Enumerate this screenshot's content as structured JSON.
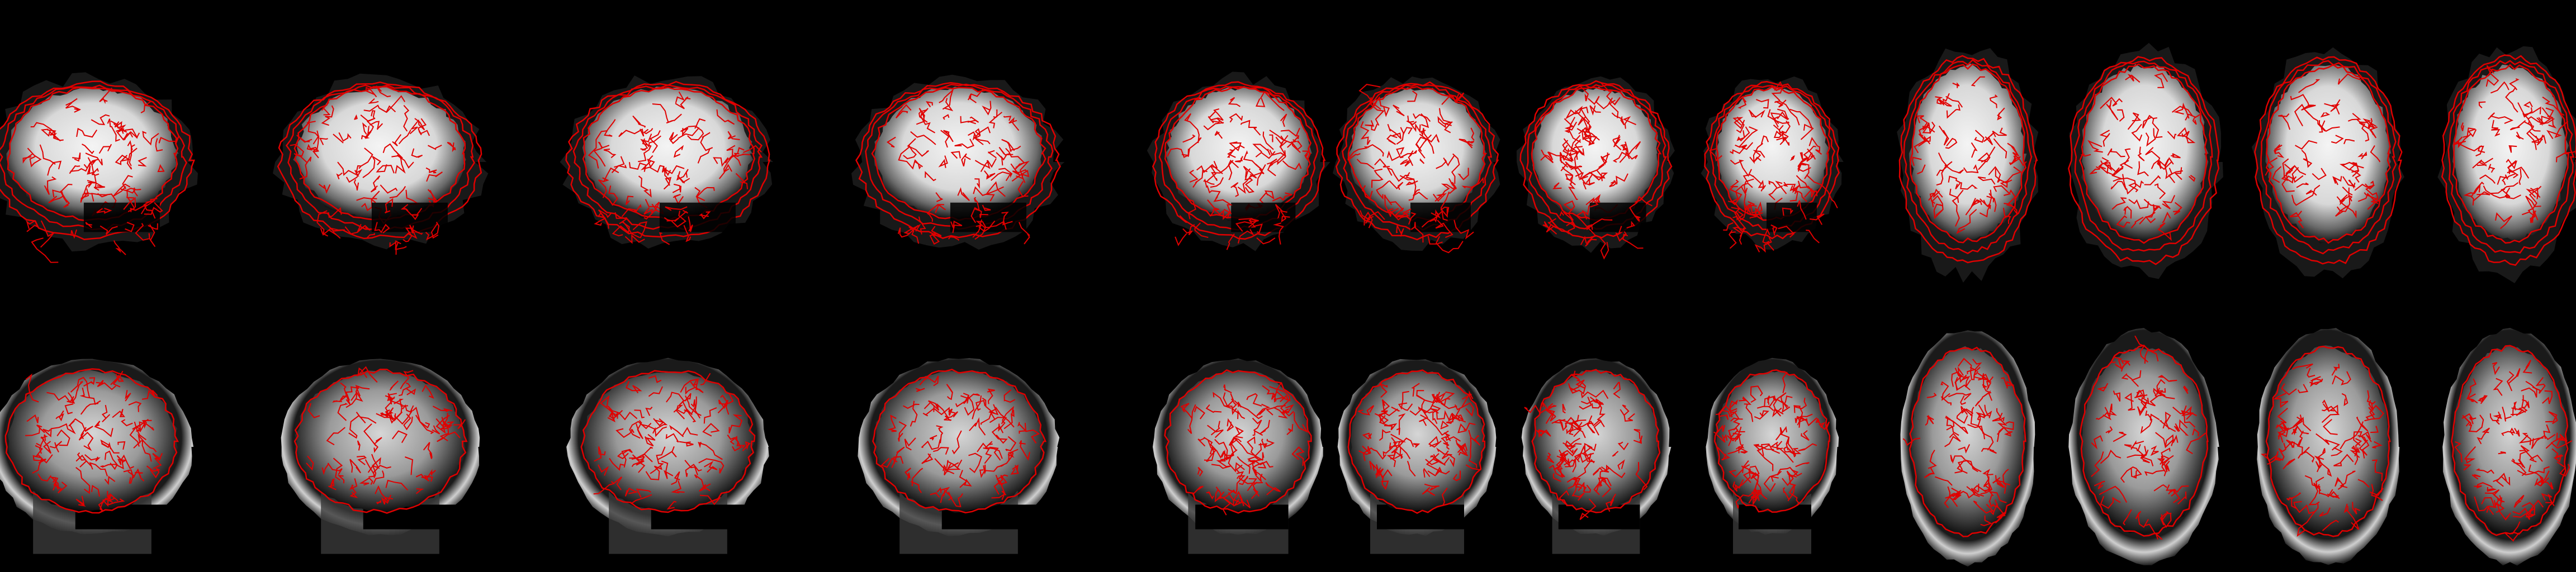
{
  "figure": {
    "background": "#000000",
    "contour_color": "#e00000",
    "rows": [
      {
        "name": "functional-row",
        "description_key": "epi-mean",
        "panels": [
          {
            "view": "sagittal"
          },
          {
            "view": "sagittal"
          },
          {
            "view": "sagittal"
          },
          {
            "view": "sagittal"
          },
          {
            "view": "coronal"
          },
          {
            "view": "coronal"
          },
          {
            "view": "coronal"
          },
          {
            "view": "coronal"
          },
          {
            "view": "axial"
          },
          {
            "view": "axial"
          },
          {
            "view": "axial"
          },
          {
            "view": "axial"
          }
        ]
      },
      {
        "name": "anatomical-row",
        "description_key": "t1w",
        "panels": [
          {
            "view": "sagittal"
          },
          {
            "view": "sagittal"
          },
          {
            "view": "sagittal"
          },
          {
            "view": "sagittal"
          },
          {
            "view": "coronal"
          },
          {
            "view": "coronal"
          },
          {
            "view": "coronal"
          },
          {
            "view": "coronal"
          },
          {
            "view": "axial"
          },
          {
            "view": "axial"
          },
          {
            "view": "axial"
          },
          {
            "view": "axial"
          }
        ]
      }
    ]
  }
}
